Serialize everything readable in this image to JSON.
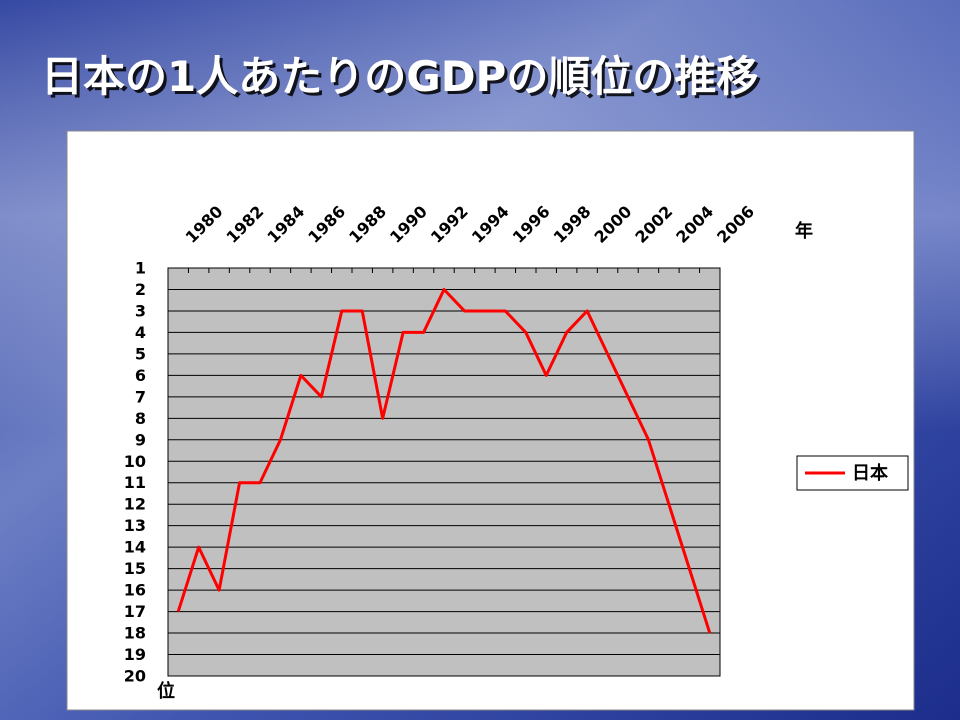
{
  "chart_data": {
    "type": "line",
    "title": "日本の1人あたりのGDPの順位の推移",
    "xlabel": "年",
    "ylabel": "位",
    "categories": [
      "1980",
      null,
      "1982",
      null,
      "1984",
      null,
      "1986",
      null,
      "1988",
      null,
      "1990",
      null,
      "1992",
      null,
      "1994",
      null,
      "1996",
      null,
      "1998",
      null,
      "2000",
      null,
      "2002",
      null,
      "2004",
      null,
      "2006"
    ],
    "series": [
      {
        "name": "日本",
        "color": "#ff0000",
        "values": [
          17,
          14,
          16,
          11,
          11,
          9,
          6,
          7,
          3,
          3,
          8,
          4,
          4,
          2,
          3,
          3,
          3,
          4,
          6,
          4,
          3,
          5,
          7,
          9,
          12,
          15,
          18
        ]
      }
    ],
    "ylim": [
      1,
      20
    ],
    "y_inverted": true,
    "yticks": [
      1,
      2,
      3,
      4,
      5,
      6,
      7,
      8,
      9,
      10,
      11,
      12,
      13,
      14,
      15,
      16,
      17,
      18,
      19,
      20
    ],
    "grid": true,
    "legend": "right"
  }
}
